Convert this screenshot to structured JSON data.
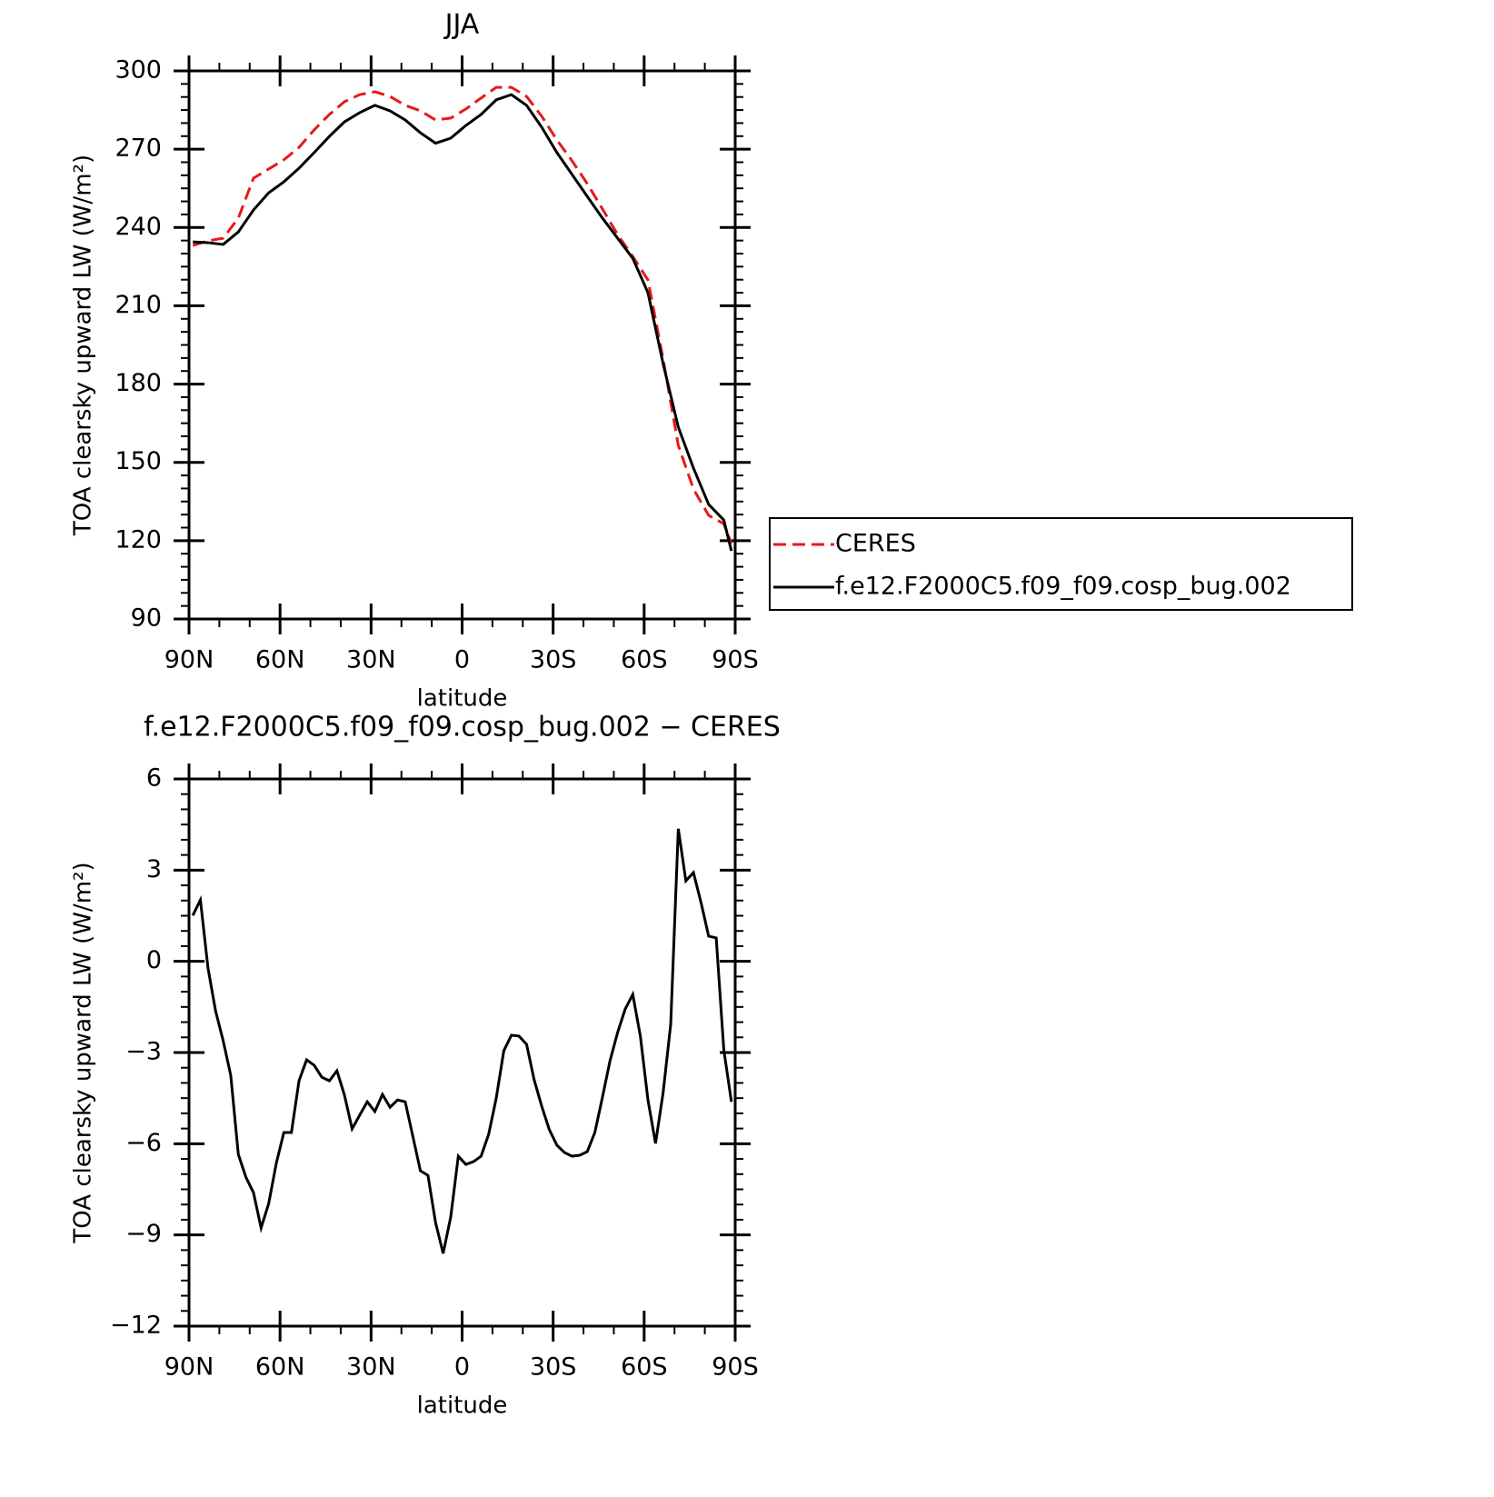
{
  "chart_data": [
    {
      "type": "line",
      "title": "JJA",
      "x_label": "latitude",
      "y_label": "TOA clearsky upward LW (W/m²)",
      "x": [
        88.75,
        83.75,
        78.75,
        73.75,
        68.75,
        63.75,
        58.75,
        53.75,
        48.75,
        43.75,
        38.75,
        33.75,
        28.75,
        23.75,
        18.75,
        13.75,
        8.75,
        3.75,
        -1.25,
        -6.25,
        -11.25,
        -16.25,
        -21.25,
        -26.25,
        -31.25,
        -36.25,
        -41.25,
        -46.25,
        -51.25,
        -56.25,
        -61.25,
        -66.25,
        -71.25,
        -76.25,
        -81.25,
        -86.25,
        -88.75
      ],
      "series": [
        {
          "name": "CERES",
          "color": "#e41a1c",
          "dash": "dashed",
          "values": [
            233.1,
            234.9,
            235.9,
            243.6,
            258.9,
            262.4,
            265.9,
            270.7,
            277.4,
            283.3,
            288.2,
            290.9,
            292.0,
            290.2,
            286.8,
            284.7,
            281.2,
            281.9,
            285.4,
            289.6,
            293.7,
            293.7,
            290.2,
            282.6,
            273.5,
            265.5,
            256.8,
            247.1,
            237.3,
            228.9,
            219.9,
            189.6,
            156.5,
            139.8,
            129.7,
            126.5,
            118.9
          ]
        },
        {
          "name": "f.e12.F2000C5.f09_f09.cosp_bug.002",
          "color": "#000000",
          "dash": "solid",
          "values": [
            234.5,
            234.2,
            233.5,
            238.3,
            246.7,
            253.3,
            257.5,
            262.7,
            268.7,
            274.9,
            280.5,
            284.0,
            286.8,
            284.7,
            281.2,
            276.3,
            272.3,
            274.2,
            279.1,
            283.3,
            288.9,
            290.9,
            286.8,
            278.4,
            268.7,
            260.3,
            251.9,
            243.6,
            235.9,
            228.2,
            215.0,
            187.8,
            163.5,
            147.8,
            133.9,
            127.9,
            116.1
          ]
        }
      ],
      "xlim": [
        90,
        -90
      ],
      "xticks": [
        {
          "value": 90,
          "label": "90N"
        },
        {
          "value": 60,
          "label": "60N"
        },
        {
          "value": 30,
          "label": "30N"
        },
        0,
        {
          "value": -30,
          "label": "30S"
        },
        {
          "value": -60,
          "label": "60S"
        },
        {
          "value": -90,
          "label": "90S"
        }
      ],
      "ylim": [
        90,
        300
      ],
      "yticks": [
        90,
        120,
        150,
        180,
        210,
        240,
        270,
        300
      ],
      "legend": "right"
    },
    {
      "type": "line",
      "title": "f.e12.F2000C5.f09_f09.cosp_bug.002 − CERES",
      "x_label": "latitude",
      "y_label": "TOA clearsky upward LW (W/m²)",
      "x": [
        88.75,
        86.25,
        83.75,
        81.25,
        78.75,
        76.25,
        73.75,
        71.25,
        68.75,
        66.25,
        63.75,
        61.25,
        58.75,
        56.25,
        53.75,
        51.25,
        48.75,
        46.25,
        43.75,
        41.25,
        38.75,
        36.25,
        33.75,
        31.25,
        28.75,
        26.25,
        23.75,
        21.25,
        18.75,
        16.25,
        13.75,
        11.25,
        8.75,
        6.25,
        3.75,
        1.25,
        -1.25,
        -3.75,
        -6.25,
        -8.75,
        -11.25,
        -13.75,
        -16.25,
        -18.75,
        -21.25,
        -23.75,
        -26.25,
        -28.75,
        -31.25,
        -33.75,
        -36.25,
        -38.75,
        -41.25,
        -43.75,
        -46.25,
        -48.75,
        -51.25,
        -53.75,
        -56.25,
        -58.75,
        -61.25,
        -63.75,
        -66.25,
        -68.75,
        -71.25,
        -73.75,
        -76.25,
        -78.75,
        -81.25,
        -83.75,
        -86.25,
        -88.75
      ],
      "values": [
        1.51,
        2.02,
        -0.22,
        -1.63,
        -2.61,
        -3.75,
        -6.35,
        -7.1,
        -7.61,
        -8.77,
        -7.97,
        -6.65,
        -5.63,
        -5.63,
        -3.93,
        -3.24,
        -3.42,
        -3.81,
        -3.93,
        -3.6,
        -4.41,
        -5.51,
        -5.06,
        -4.62,
        -4.94,
        -4.38,
        -4.8,
        -4.56,
        -4.62,
        -5.75,
        -6.89,
        -7.04,
        -8.59,
        -9.61,
        -8.41,
        -6.41,
        -6.68,
        -6.59,
        -6.41,
        -5.69,
        -4.5,
        -2.94,
        -2.43,
        -2.46,
        -2.73,
        -3.9,
        -4.77,
        -5.54,
        -6.05,
        -6.29,
        -6.41,
        -6.38,
        -6.26,
        -5.63,
        -4.47,
        -3.27,
        -2.34,
        -1.57,
        -1.09,
        -2.46,
        -4.56,
        -5.99,
        -4.32,
        -2.07,
        4.36,
        2.65,
        2.92,
        1.93,
        0.83,
        0.77,
        -2.91,
        -4.62
      ],
      "color": "#000000",
      "xlim": [
        90,
        -90
      ],
      "xticks": [
        {
          "value": 90,
          "label": "90N"
        },
        {
          "value": 60,
          "label": "60N"
        },
        {
          "value": 30,
          "label": "30N"
        },
        0,
        {
          "value": -30,
          "label": "30S"
        },
        {
          "value": -60,
          "label": "60S"
        },
        {
          "value": -90,
          "label": "90S"
        }
      ],
      "ylim": [
        -12,
        6
      ],
      "yticks": [
        {
          "value": -12,
          "label": "−12"
        },
        {
          "value": -9,
          "label": "−9"
        },
        {
          "value": -6,
          "label": "−6"
        },
        {
          "value": -3,
          "label": "−3"
        },
        0,
        3,
        6
      ]
    }
  ]
}
